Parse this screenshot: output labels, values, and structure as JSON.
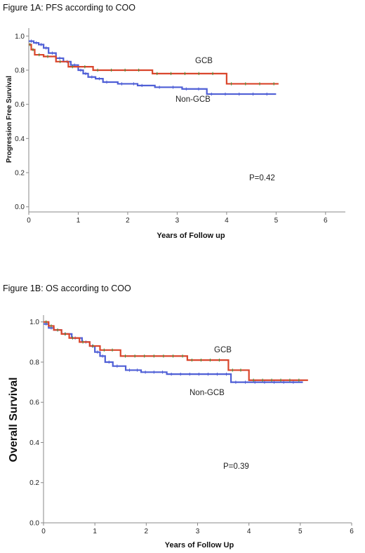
{
  "colors": {
    "gcb": "#d9452b",
    "non_gcb": "#4f5fd6",
    "gcb_censor": "#3a9a3a",
    "axis": "#8a8a8a"
  },
  "chart_data": [
    {
      "type": "line",
      "figure_title": "Figure 1A: PFS according to COO",
      "xlabel": "Years of Follow up",
      "ylabel": "Progression Free Survival",
      "xlim": [
        0,
        6.4
      ],
      "ylim": [
        -0.03,
        1.03
      ],
      "x_ticks": [
        "0",
        "1",
        "2",
        "3",
        "4",
        "5",
        "6"
      ],
      "y_ticks": [
        "0.0",
        "0.2",
        "0.4",
        "0.6",
        "0.8",
        "1.0"
      ],
      "annotation": "P=0.42",
      "series": [
        {
          "name": "GCB",
          "x": [
            0,
            0.05,
            0.12,
            0.3,
            0.55,
            0.8,
            1.3,
            2.5,
            4.0,
            5.05
          ],
          "y": [
            0.95,
            0.92,
            0.89,
            0.88,
            0.85,
            0.82,
            0.8,
            0.78,
            0.72,
            0.72
          ]
        },
        {
          "name": "Non-GCB",
          "x": [
            0,
            0.1,
            0.2,
            0.3,
            0.4,
            0.55,
            0.7,
            0.85,
            1.0,
            1.1,
            1.2,
            1.35,
            1.5,
            1.8,
            2.2,
            2.55,
            3.1,
            3.6,
            5.0
          ],
          "y": [
            0.97,
            0.96,
            0.95,
            0.93,
            0.9,
            0.87,
            0.85,
            0.83,
            0.8,
            0.78,
            0.76,
            0.75,
            0.73,
            0.72,
            0.71,
            0.7,
            0.69,
            0.66,
            0.66
          ]
        }
      ]
    },
    {
      "type": "line",
      "figure_title": "Figure 1B: OS according to COO",
      "xlabel": "Years of Follow Up",
      "ylabel": "Overall Survival",
      "xlim": [
        0,
        6
      ],
      "ylim": [
        0,
        1.02
      ],
      "x_ticks": [
        "0",
        "1",
        "2",
        "3",
        "4",
        "5",
        "6"
      ],
      "y_ticks": [
        "0.0",
        "0.2",
        "0.4",
        "0.6",
        "0.8",
        "1.0"
      ],
      "annotation": "P=0.39",
      "series": [
        {
          "name": "GCB",
          "x": [
            0,
            0.1,
            0.2,
            0.35,
            0.5,
            0.7,
            0.9,
            1.1,
            1.5,
            2.8,
            3.6,
            4.0,
            5.15
          ],
          "y": [
            1.0,
            0.98,
            0.96,
            0.94,
            0.92,
            0.9,
            0.88,
            0.86,
            0.83,
            0.81,
            0.76,
            0.71,
            0.71
          ]
        },
        {
          "name": "Non-GCB",
          "x": [
            0,
            0.1,
            0.2,
            0.35,
            0.55,
            0.75,
            0.9,
            1.0,
            1.1,
            1.2,
            1.35,
            1.6,
            1.9,
            2.4,
            3.65,
            5.05
          ],
          "y": [
            0.99,
            0.97,
            0.96,
            0.94,
            0.92,
            0.9,
            0.88,
            0.85,
            0.83,
            0.8,
            0.78,
            0.76,
            0.75,
            0.74,
            0.7,
            0.7
          ]
        }
      ]
    }
  ]
}
